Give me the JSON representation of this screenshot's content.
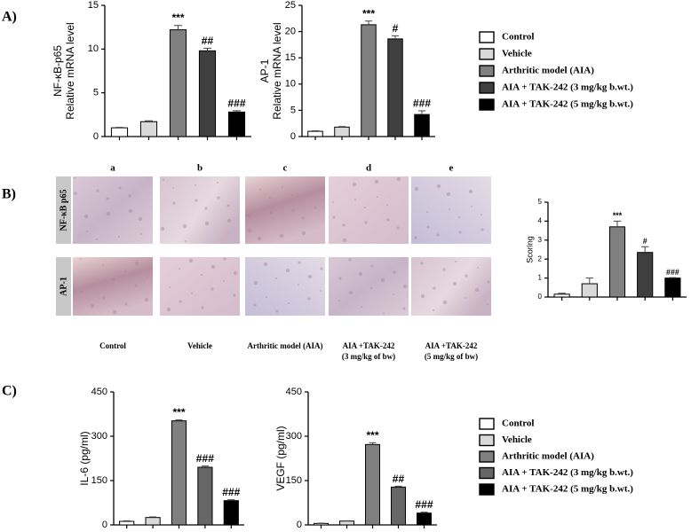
{
  "panel_labels": [
    "A)",
    "B)",
    "C)"
  ],
  "chart_data": [
    {
      "type": "bar",
      "ylabel": [
        "NF-κB-p65",
        "Relative mRNA level"
      ],
      "categories": [
        null,
        null,
        null,
        null,
        null
      ],
      "colors": [
        "#ffffff",
        "#d9d9d9",
        "#808080",
        "#3f3f3f",
        "#000000"
      ],
      "values": [
        1.0,
        1.7,
        12.2,
        9.8,
        2.8
      ],
      "errors": [
        0.05,
        0.1,
        0.5,
        0.3,
        0.15
      ],
      "annotations": [
        null,
        null,
        "***",
        "##",
        "###"
      ],
      "ylim": [
        0,
        15
      ],
      "yticks": [
        0,
        5,
        10,
        15
      ]
    },
    {
      "type": "bar",
      "ylabel": [
        "AP-1",
        "Relative mRNA level"
      ],
      "categories": [
        null,
        null,
        null,
        null,
        null
      ],
      "colors": [
        "#ffffff",
        "#d9d9d9",
        "#808080",
        "#3f3f3f",
        "#000000"
      ],
      "values": [
        1.0,
        1.8,
        21.3,
        18.6,
        4.2
      ],
      "errors": [
        0.1,
        0.1,
        0.7,
        0.6,
        0.7
      ],
      "annotations": [
        null,
        null,
        "***",
        "#",
        "###"
      ],
      "ylim": [
        0,
        25
      ],
      "yticks": [
        0,
        5,
        10,
        15,
        20,
        25
      ]
    },
    {
      "type": "bar",
      "ylabel": [
        "Scoring"
      ],
      "categories": [
        null,
        null,
        null,
        null,
        null
      ],
      "colors": [
        "#ffffff",
        "#d9d9d9",
        "#808080",
        "#3f3f3f",
        "#000000"
      ],
      "values": [
        0.15,
        0.7,
        3.7,
        2.35,
        1.0
      ],
      "errors": [
        0.05,
        0.3,
        0.3,
        0.3,
        0.02
      ],
      "annotations": [
        null,
        null,
        "***",
        "#",
        "###"
      ],
      "ylim": [
        0,
        5
      ],
      "yticks": [
        0,
        1,
        2,
        3,
        4,
        5
      ]
    },
    {
      "type": "bar",
      "ylabel": [
        "IL-6 (pg/ml)"
      ],
      "categories": [
        null,
        null,
        null,
        null,
        null
      ],
      "colors": [
        "#ffffff",
        "#d9d9d9",
        "#808080",
        "#666666",
        "#000000"
      ],
      "values": [
        12,
        25,
        352,
        195,
        82
      ],
      "errors": [
        2,
        2,
        3,
        4,
        3
      ],
      "annotations": [
        null,
        null,
        "***",
        "###",
        "###"
      ],
      "ylim": [
        0,
        450
      ],
      "yticks": [
        0,
        150,
        300,
        450
      ]
    },
    {
      "type": "bar",
      "ylabel": [
        "VEGF (pg/ml)"
      ],
      "categories": [
        null,
        null,
        null,
        null,
        null
      ],
      "colors": [
        "#ffffff",
        "#d9d9d9",
        "#808080",
        "#666666",
        "#000000"
      ],
      "values": [
        5,
        13,
        272,
        128,
        40
      ],
      "errors": [
        1,
        1,
        6,
        3,
        3
      ],
      "annotations": [
        null,
        null,
        "***",
        "##",
        "###"
      ],
      "ylim": [
        0,
        450
      ],
      "yticks": [
        0,
        150,
        300,
        450
      ]
    }
  ],
  "legends": [
    {
      "entries": [
        {
          "name": "Control",
          "color": "#ffffff"
        },
        {
          "name": "Vehicle",
          "color": "#d9d9d9"
        },
        {
          "name": "Arthritic model (AIA)",
          "color": "#808080"
        },
        {
          "name": "AIA + TAK-242 (3 mg/kg b.wt.)",
          "color": "#3f3f3f"
        },
        {
          "name": "AIA + TAK-242 (5 mg/kg b.wt.)",
          "color": "#000000"
        }
      ]
    },
    {
      "entries": [
        {
          "name": "Control",
          "color": "#ffffff"
        },
        {
          "name": "Vehicle",
          "color": "#d9d9d9"
        },
        {
          "name": "Arthritic model (AIA)",
          "color": "#808080"
        },
        {
          "name": "AIA + TAK-242 (3 mg/kg b.wt.)",
          "color": "#666666"
        },
        {
          "name": "AIA + TAK-242 (5 mg/kg b.wt.)",
          "color": "#000000"
        }
      ]
    }
  ],
  "histology": {
    "columns": [
      "a",
      "b",
      "c",
      "d",
      "e"
    ],
    "rows": [
      "NF-κB p65",
      "AP-1"
    ],
    "captions": [
      [
        "Control"
      ],
      [
        "Vehicle"
      ],
      [
        "Arthritic model (AIA)"
      ],
      [
        "AIA +TAK-242",
        "(3 mg/kg of bw)"
      ],
      [
        "AIA +TAK-242",
        "(5 mg/kg of bw)"
      ]
    ]
  }
}
